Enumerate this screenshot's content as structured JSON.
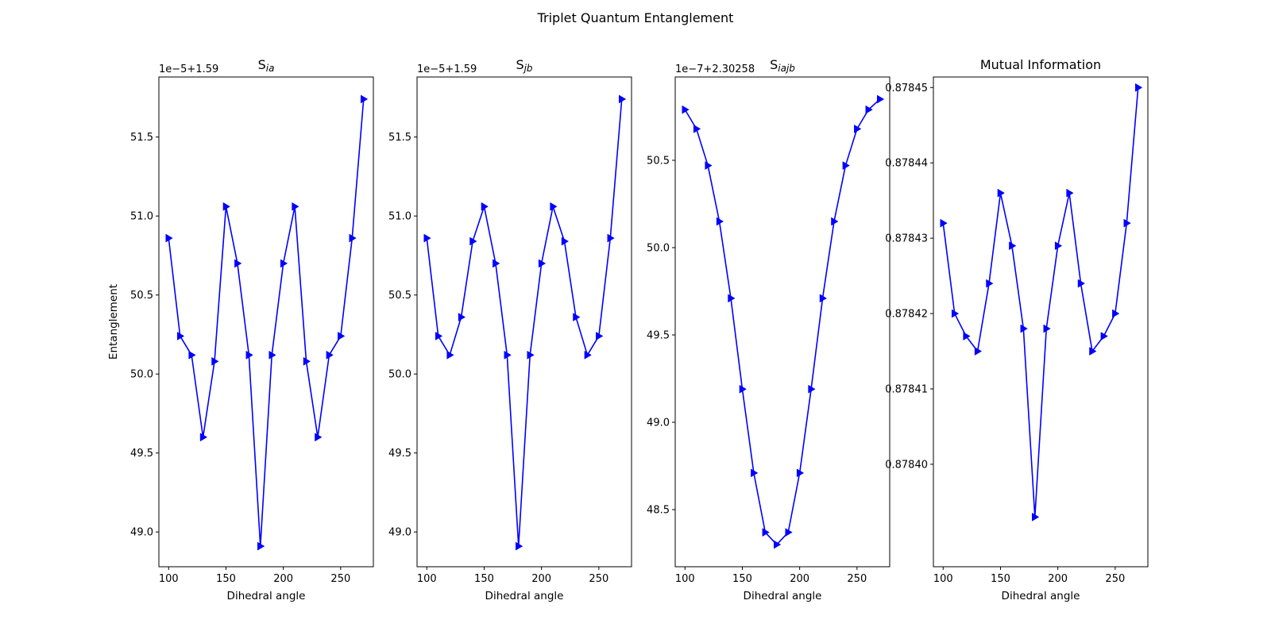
{
  "figure": {
    "title": "Triplet Quantum Entanglement"
  },
  "chart_data": [
    {
      "type": "line",
      "title": "S",
      "title_sub": "ia",
      "xlabel": "Dihedral angle",
      "ylabel": "Entanglement",
      "offset_text": "1e−5+1.59",
      "x": [
        100,
        110,
        120,
        130,
        140,
        150,
        160,
        170,
        180,
        190,
        200,
        210,
        220,
        230,
        240,
        250,
        260,
        270
      ],
      "values": [
        50.86,
        50.24,
        50.12,
        49.6,
        50.08,
        51.06,
        50.7,
        50.12,
        48.91,
        50.12,
        50.7,
        51.06,
        50.08,
        49.6,
        50.12,
        50.24,
        50.86,
        51.74
      ],
      "xlim": [
        91.5,
        278.5
      ],
      "ylim": [
        48.78,
        51.88
      ],
      "xticks": [
        100,
        150,
        200,
        250
      ],
      "yticks": [
        49.0,
        49.5,
        50.0,
        50.5,
        51.0,
        51.5
      ],
      "ytick_labels": [
        "49.0",
        "49.5",
        "50.0",
        "50.5",
        "51.0",
        "51.5"
      ],
      "grid": false,
      "color": "#0000ff",
      "marker": "triangle-right"
    },
    {
      "type": "line",
      "title": "S",
      "title_sub": "jb",
      "xlabel": "Dihedral angle",
      "ylabel": "",
      "offset_text": "1e−5+1.59",
      "x": [
        100,
        110,
        120,
        130,
        140,
        150,
        160,
        170,
        180,
        190,
        200,
        210,
        220,
        230,
        240,
        250,
        260,
        270
      ],
      "values": [
        50.86,
        50.24,
        50.12,
        50.36,
        50.84,
        51.06,
        50.7,
        50.12,
        48.91,
        50.12,
        50.7,
        51.06,
        50.84,
        50.36,
        50.12,
        50.24,
        50.86,
        51.74
      ],
      "xlim": [
        91.5,
        278.5
      ],
      "ylim": [
        48.78,
        51.88
      ],
      "xticks": [
        100,
        150,
        200,
        250
      ],
      "yticks": [
        49.0,
        49.5,
        50.0,
        50.5,
        51.0,
        51.5
      ],
      "ytick_labels": [
        "49.0",
        "49.5",
        "50.0",
        "50.5",
        "51.0",
        "51.5"
      ],
      "grid": false,
      "color": "#0000ff",
      "marker": "triangle-right"
    },
    {
      "type": "line",
      "title": "S",
      "title_sub": "iajb",
      "xlabel": "Dihedral angle",
      "ylabel": "",
      "offset_text": "1e−7+2.30258",
      "x": [
        100,
        110,
        120,
        130,
        140,
        150,
        160,
        170,
        180,
        190,
        200,
        210,
        220,
        230,
        240,
        250,
        260,
        270
      ],
      "values": [
        50.79,
        50.68,
        50.47,
        50.15,
        49.71,
        49.19,
        48.71,
        48.37,
        48.3,
        48.37,
        48.71,
        49.19,
        49.71,
        50.15,
        50.47,
        50.68,
        50.79,
        50.85
      ],
      "xlim": [
        91.5,
        278.5
      ],
      "ylim": [
        48.173,
        50.977
      ],
      "xticks": [
        100,
        150,
        200,
        250
      ],
      "yticks": [
        48.5,
        49.0,
        49.5,
        50.0,
        50.5
      ],
      "ytick_labels": [
        "48.5",
        "49.0",
        "49.5",
        "50.0",
        "50.5"
      ],
      "grid": false,
      "color": "#0000ff",
      "marker": "triangle-right"
    },
    {
      "type": "line",
      "title": "Mutual Information",
      "title_sub": "",
      "xlabel": "Dihedral angle",
      "ylabel": "",
      "offset_text": "",
      "x": [
        100,
        110,
        120,
        130,
        140,
        150,
        160,
        170,
        180,
        190,
        200,
        210,
        220,
        230,
        240,
        250,
        260,
        270
      ],
      "values": [
        0.878432,
        0.87842,
        0.878417,
        0.878415,
        0.878424,
        0.878436,
        0.878429,
        0.878418,
        0.878393,
        0.878418,
        0.878429,
        0.878436,
        0.878424,
        0.878415,
        0.878417,
        0.87842,
        0.878432,
        0.87845
      ],
      "xlim": [
        91.5,
        278.5
      ],
      "ylim": [
        0.8783864,
        0.8784514
      ],
      "xticks": [
        100,
        150,
        200,
        250
      ],
      "yticks": [
        0.8784,
        0.87841,
        0.87842,
        0.87843,
        0.87844,
        0.87845
      ],
      "ytick_labels": [
        "0.87840",
        "0.87841",
        "0.87842",
        "0.87843",
        "0.87844",
        "0.87845"
      ],
      "grid": false,
      "color": "#0000ff",
      "marker": "triangle-right"
    }
  ]
}
